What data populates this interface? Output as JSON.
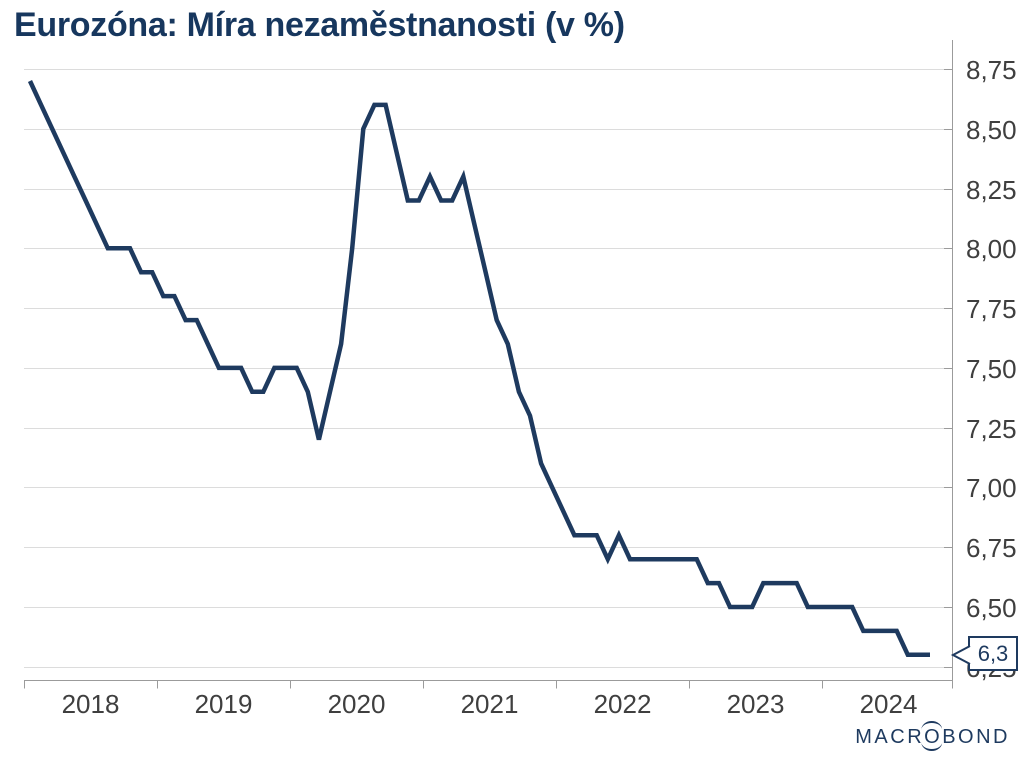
{
  "title": "Eurozóna: Míra nezaměstnanosti (v %)",
  "callout": {
    "label": "6,3"
  },
  "logo": {
    "macr": "MACR",
    "o": "O",
    "bond": "BOND"
  },
  "colors": {
    "line": "#1e3a5f",
    "title": "#17375e",
    "grid": "#dcdcdc",
    "axis": "#9b9b9b",
    "tick_label": "#3f3f3f",
    "callout_border": "#1e3a5f",
    "background": "#ffffff"
  },
  "chart_data": {
    "type": "line",
    "title": "Eurozóna: Míra nezaměstnanosti (v %)",
    "unit": "%",
    "frequency": "monthly",
    "start": "2018-01",
    "end": "2024-10",
    "x_tick_labels": [
      "2018",
      "2019",
      "2020",
      "2021",
      "2022",
      "2023",
      "2024"
    ],
    "y_ticks": [
      8.75,
      8.5,
      8.25,
      8.0,
      7.75,
      7.5,
      7.25,
      7.0,
      6.75,
      6.5,
      6.25
    ],
    "y_tick_labels": [
      "8,75",
      "8,50",
      "8,25",
      "8,00",
      "7,75",
      "7,50",
      "7,25",
      "7,00",
      "6,75",
      "6,50",
      "6,25"
    ],
    "ylim": [
      6.2,
      8.8
    ],
    "grid": "horizontal",
    "legend": "none",
    "last_value_label": "6,3",
    "values": [
      8.7,
      8.6,
      8.5,
      8.4,
      8.3,
      8.2,
      8.1,
      8.0,
      8.0,
      8.0,
      7.9,
      7.9,
      7.8,
      7.8,
      7.7,
      7.7,
      7.6,
      7.5,
      7.5,
      7.5,
      7.4,
      7.4,
      7.5,
      7.5,
      7.5,
      7.4,
      7.2,
      7.4,
      7.6,
      8.0,
      8.5,
      8.6,
      8.6,
      8.4,
      8.2,
      8.2,
      8.3,
      8.2,
      8.2,
      8.3,
      8.1,
      7.9,
      7.7,
      7.6,
      7.4,
      7.3,
      7.1,
      7.0,
      6.9,
      6.8,
      6.8,
      6.8,
      6.7,
      6.8,
      6.7,
      6.7,
      6.7,
      6.7,
      6.7,
      6.7,
      6.7,
      6.6,
      6.6,
      6.5,
      6.5,
      6.5,
      6.6,
      6.6,
      6.6,
      6.6,
      6.5,
      6.5,
      6.5,
      6.5,
      6.5,
      6.4,
      6.4,
      6.4,
      6.4,
      6.3,
      6.3,
      6.3
    ]
  }
}
